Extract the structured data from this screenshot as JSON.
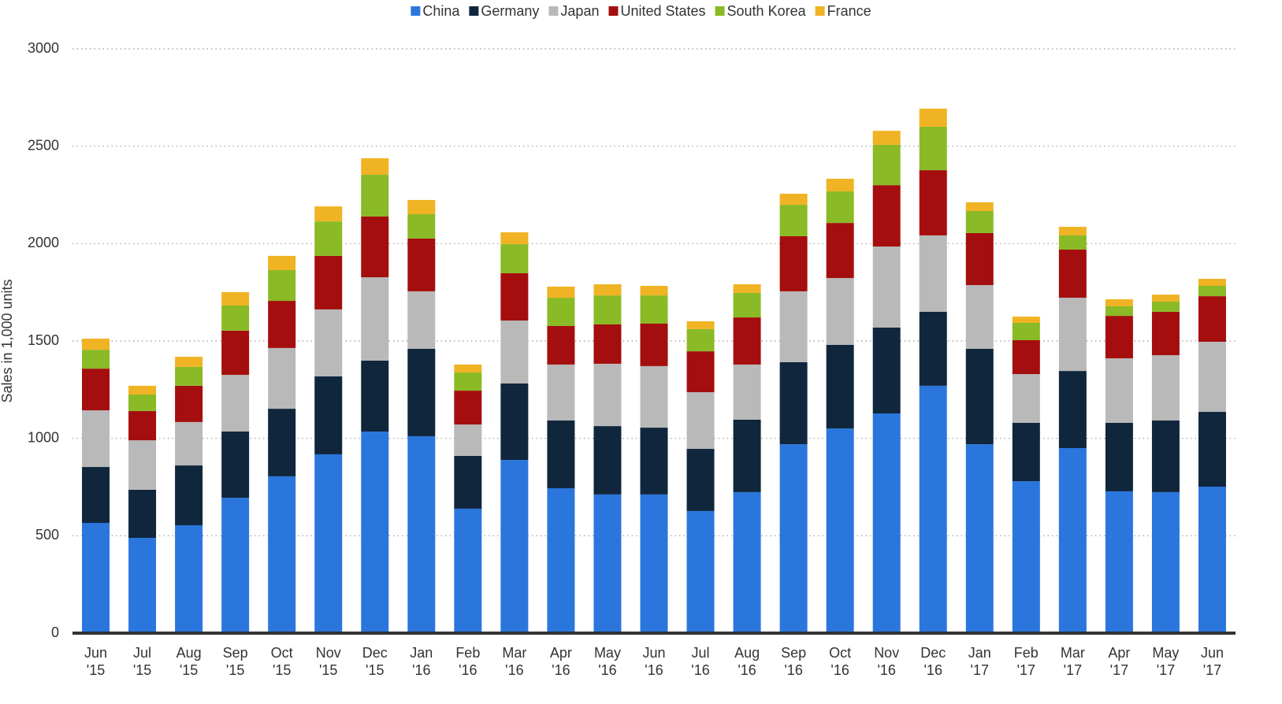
{
  "chart_data": {
    "type": "stacked_bar",
    "y_label": "Sales in 1,000 units",
    "categories": [
      "Jun '15",
      "Jul '15",
      "Aug '15",
      "Sep '15",
      "Oct '15",
      "Nov '15",
      "Dec '15",
      "Jan '16",
      "Feb '16",
      "Mar '16",
      "Apr '16",
      "May '16",
      "Jun '16",
      "Jul '16",
      "Aug '16",
      "Sep '16",
      "Oct '16",
      "Nov '16",
      "Dec '16",
      "Jan '17",
      "Feb '17",
      "Mar '17",
      "Apr '17",
      "May '17",
      "Jun '17"
    ],
    "series": [
      {
        "name": "China",
        "color": "#2a76dd",
        "values": [
          566,
          489,
          554,
          695,
          805,
          918,
          1035,
          1011,
          639,
          889,
          744,
          712,
          712,
          627,
          724,
          970,
          1051,
          1128,
          1270,
          970,
          780,
          950,
          728,
          724,
          752
        ]
      },
      {
        "name": "Germany",
        "color": "#10263c",
        "values": [
          287,
          247,
          307,
          340,
          347,
          400,
          364,
          449,
          271,
          393,
          348,
          351,
          343,
          319,
          372,
          421,
          429,
          441,
          380,
          490,
          300,
          396,
          352,
          368,
          384
        ]
      },
      {
        "name": "Japan",
        "color": "#b9b9b9",
        "values": [
          291,
          254,
          223,
          291,
          312,
          344,
          428,
          295,
          161,
          323,
          287,
          320,
          316,
          291,
          283,
          364,
          343,
          416,
          392,
          327,
          250,
          376,
          331,
          335,
          360
        ]
      },
      {
        "name": "United States",
        "color": "#a50e0e",
        "values": [
          214,
          150,
          186,
          227,
          242,
          275,
          312,
          271,
          174,
          243,
          198,
          202,
          218,
          210,
          242,
          283,
          283,
          315,
          335,
          267,
          174,
          247,
          218,
          223,
          234
        ]
      },
      {
        "name": "South Korea",
        "color": "#8aba25",
        "values": [
          97,
          85,
          97,
          129,
          158,
          177,
          214,
          125,
          93,
          149,
          145,
          149,
          145,
          114,
          126,
          161,
          162,
          207,
          223,
          113,
          89,
          73,
          49,
          52,
          53
        ]
      },
      {
        "name": "France",
        "color": "#f0b323",
        "values": [
          57,
          45,
          52,
          69,
          73,
          77,
          85,
          73,
          41,
          61,
          57,
          57,
          49,
          40,
          44,
          57,
          65,
          72,
          93,
          45,
          32,
          44,
          36,
          36,
          36
        ]
      }
    ],
    "ylim": [
      0,
      3000
    ],
    "yticks": [
      0,
      500,
      1000,
      1500,
      2000,
      2500,
      3000
    ],
    "grid": true,
    "legend": "top"
  }
}
